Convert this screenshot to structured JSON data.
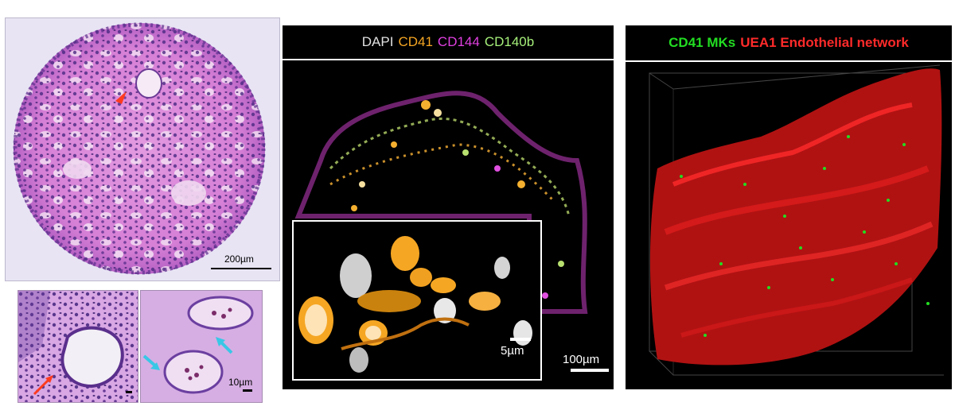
{
  "he_panel": {
    "scale_label": "200µm"
  },
  "he_inset2": {
    "scale_label": "10µm"
  },
  "fluor_panel": {
    "header": [
      {
        "text": "DAPI",
        "color": "#e0e0e0"
      },
      {
        "text": "CD41",
        "color": "#f5a623"
      },
      {
        "text": "CD144",
        "color": "#e040e0"
      },
      {
        "text": "CD140b",
        "color": "#a6f07a"
      }
    ],
    "scale_label": "100µm",
    "inset_scale_label": "5µm"
  },
  "render_panel": {
    "header": [
      {
        "text": "CD41 MKs",
        "color": "#22dd22"
      },
      {
        "text": "UEA1 Endothelial network",
        "color": "#ff2a2a"
      }
    ]
  }
}
